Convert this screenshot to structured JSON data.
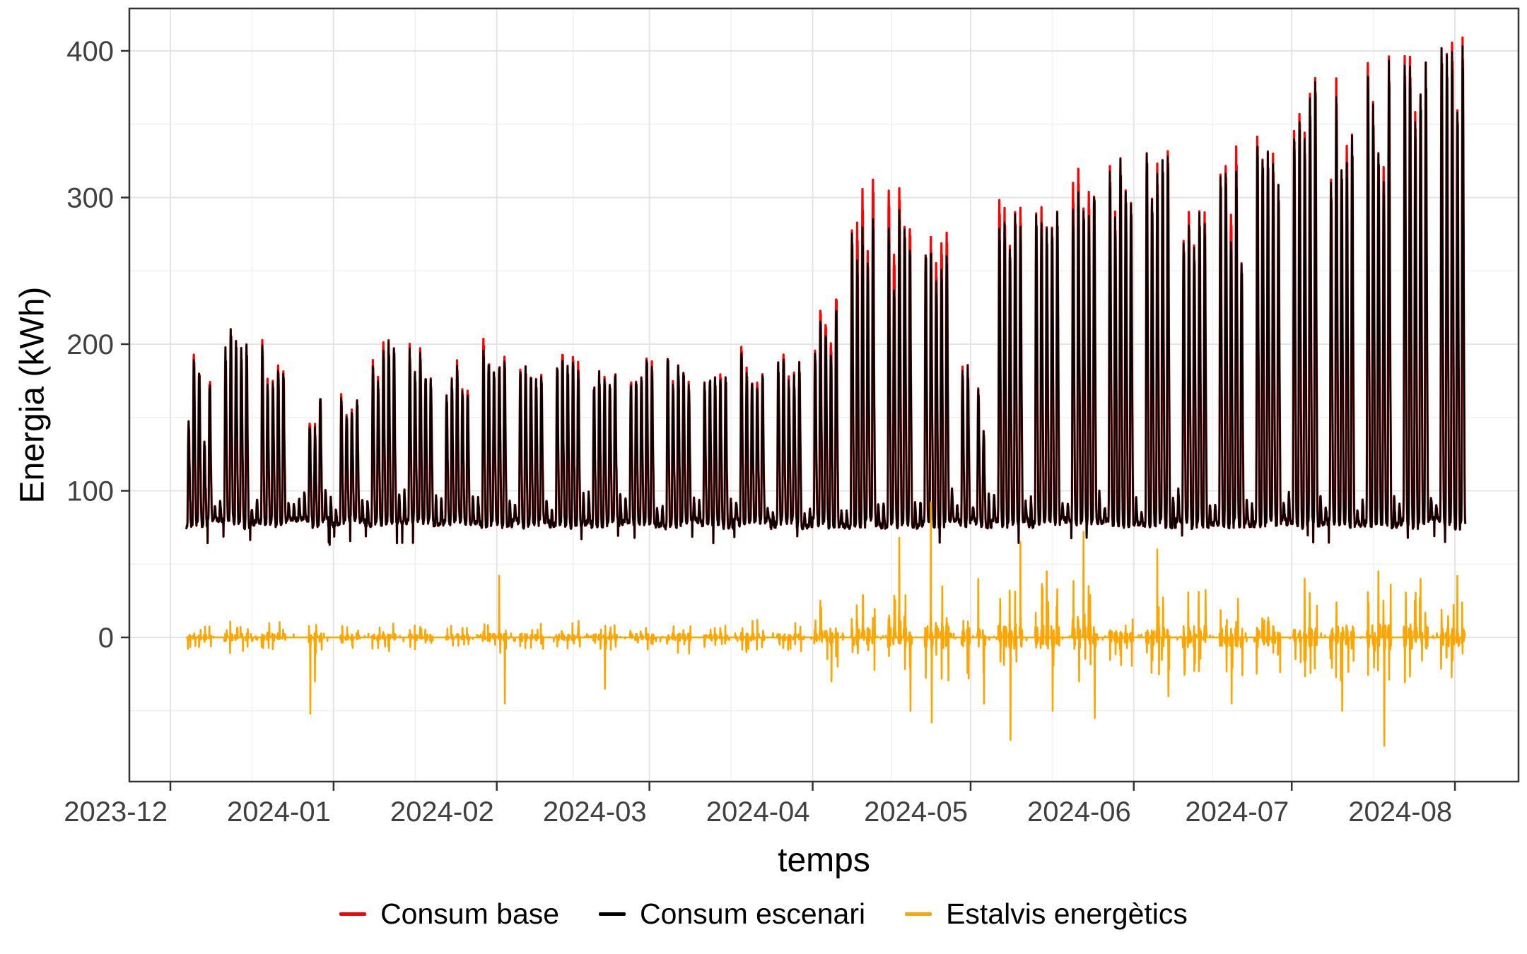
{
  "chart_data": {
    "type": "line",
    "title": "",
    "xlabel": "temps",
    "ylabel": "Energia (kWh)",
    "x_tick_labels": [
      "2023-12",
      "2024-01",
      "2024-02",
      "2024-03",
      "2024-04",
      "2024-05",
      "2024-06",
      "2024-07",
      "2024-08"
    ],
    "month_starts": [
      "2023-12-01",
      "2024-01-01",
      "2024-02-01",
      "2024-03-01",
      "2024-04-01",
      "2024-05-01",
      "2024-06-01",
      "2024-07-01",
      "2024-08-01"
    ],
    "y_tick_labels": [
      "0",
      "100",
      "200",
      "300",
      "400"
    ],
    "y_tick_values": [
      0,
      100,
      200,
      300,
      400
    ],
    "y_minor_values": [
      -50,
      50,
      150,
      250,
      350
    ],
    "ylim": [
      -98,
      429
    ],
    "grid": "major and minor gridlines, light gray on white, dark panel border",
    "legend_position": "bottom-center",
    "resolution": "hourly",
    "date_start": "2023-12-04",
    "date_end": "2024-08-02",
    "holidays": [
      "2023-12-25",
      "2023-12-26",
      "2024-01-01",
      "2024-05-01"
    ],
    "baseline": {
      "night_min": 75,
      "night_max": 81,
      "weekend_bump_max": 22,
      "special_low": {
        "date": "2023-12-31",
        "value": 63
      }
    },
    "series": [
      {
        "name": "Consum base",
        "color": "#FF0000"
      },
      {
        "name": "Consum escenari",
        "color": "#000000"
      },
      {
        "name": "Estalvis energètics",
        "color": "#FFA500"
      }
    ],
    "weekly_envelope": [
      {
        "week_start": "2023-12-04",
        "black_peak_min": 130,
        "black_peak_max": 196,
        "red_excess_max": 4,
        "savings_amp": 8
      },
      {
        "week_start": "2023-12-11",
        "black_peak_min": 185,
        "black_peak_max": 215,
        "red_excess_max": 4,
        "savings_amp": 12
      },
      {
        "week_start": "2023-12-18",
        "black_peak_min": 168,
        "black_peak_max": 206,
        "red_excess_max": 5,
        "savings_amp": 12
      },
      {
        "week_start": "2023-12-25",
        "black_peak_min": 140,
        "black_peak_max": 172,
        "red_excess_max": 3,
        "savings_amp": 15,
        "savings_events": [
          {
            "date": "2023-12-27",
            "value": -52,
            "hour": 14
          },
          {
            "date": "2023-12-28",
            "value": -30,
            "hour": 11
          }
        ]
      },
      {
        "week_start": "2024-01-01",
        "black_peak_min": 145,
        "black_peak_max": 168,
        "red_excess_max": 3,
        "savings_amp": 8
      },
      {
        "week_start": "2024-01-08",
        "black_peak_min": 170,
        "black_peak_max": 205,
        "red_excess_max": 6,
        "savings_amp": 10
      },
      {
        "week_start": "2024-01-15",
        "black_peak_min": 172,
        "black_peak_max": 197,
        "red_excess_max": 5,
        "savings_amp": 10
      },
      {
        "week_start": "2024-01-22",
        "black_peak_min": 162,
        "black_peak_max": 188,
        "red_excess_max": 4,
        "savings_amp": 8
      },
      {
        "week_start": "2024-01-29",
        "black_peak_min": 178,
        "black_peak_max": 212,
        "red_excess_max": 8,
        "savings_amp": 12,
        "savings_events": [
          {
            "date": "2024-02-01",
            "value": 42,
            "hour": 11
          },
          {
            "date": "2024-02-02",
            "value": -45,
            "hour": 13
          }
        ]
      },
      {
        "week_start": "2024-02-05",
        "black_peak_min": 170,
        "black_peak_max": 198,
        "red_excess_max": 5,
        "savings_amp": 12
      },
      {
        "week_start": "2024-02-12",
        "black_peak_min": 178,
        "black_peak_max": 205,
        "red_excess_max": 6,
        "savings_amp": 10
      },
      {
        "week_start": "2024-02-19",
        "black_peak_min": 168,
        "black_peak_max": 196,
        "red_excess_max": 5,
        "savings_amp": 10,
        "savings_events": [
          {
            "date": "2024-02-21",
            "value": -35,
            "hour": 13
          }
        ]
      },
      {
        "week_start": "2024-02-26",
        "black_peak_min": 172,
        "black_peak_max": 190,
        "red_excess_max": 4,
        "savings_amp": 10
      },
      {
        "week_start": "2024-03-04",
        "black_peak_min": 170,
        "black_peak_max": 200,
        "red_excess_max": 5,
        "savings_amp": 12
      },
      {
        "week_start": "2024-03-11",
        "black_peak_min": 172,
        "black_peak_max": 190,
        "red_excess_max": 4,
        "savings_amp": 10
      },
      {
        "week_start": "2024-03-18",
        "black_peak_min": 172,
        "black_peak_max": 204,
        "red_excess_max": 5,
        "savings_amp": 12
      },
      {
        "week_start": "2024-03-25",
        "black_peak_min": 170,
        "black_peak_max": 192,
        "red_excess_max": 4,
        "savings_amp": 10
      },
      {
        "week_start": "2024-04-01",
        "black_peak_min": 185,
        "black_peak_max": 231,
        "red_excess_max": 10,
        "savings_amp": 20,
        "savings_events": [
          {
            "date": "2024-04-02",
            "value": 25,
            "hour": 11
          },
          {
            "date": "2024-04-04",
            "value": -30,
            "hour": 14
          }
        ]
      },
      {
        "week_start": "2024-04-08",
        "black_peak_min": 230,
        "black_peak_max": 290,
        "red_excess_max": 30,
        "savings_amp": 25
      },
      {
        "week_start": "2024-04-15",
        "black_peak_min": 235,
        "black_peak_max": 293,
        "red_excess_max": 28,
        "savings_amp": 30,
        "savings_events": [
          {
            "date": "2024-04-17",
            "value": 68,
            "hour": 11
          },
          {
            "date": "2024-04-19",
            "value": -50,
            "hour": 14
          }
        ]
      },
      {
        "week_start": "2024-04-22",
        "black_peak_min": 230,
        "black_peak_max": 265,
        "red_excess_max": 25,
        "savings_amp": 35,
        "savings_events": [
          {
            "date": "2024-04-23",
            "value": 92,
            "hour": 11
          },
          {
            "date": "2024-04-23",
            "value": -58,
            "hour": 15
          }
        ]
      },
      {
        "week_start": "2024-04-29",
        "black_peak_min": 120,
        "black_peak_max": 205,
        "red_excess_max": 8,
        "savings_amp": 30,
        "savings_events": [
          {
            "date": "2024-05-02",
            "value": 40,
            "hour": 11
          },
          {
            "date": "2024-05-03",
            "value": -45,
            "hour": 13
          }
        ]
      },
      {
        "week_start": "2024-05-06",
        "black_peak_min": 255,
        "black_peak_max": 290,
        "red_excess_max": 25,
        "savings_amp": 40,
        "savings_events": [
          {
            "date": "2024-05-08",
            "value": -70,
            "hour": 14
          },
          {
            "date": "2024-05-10",
            "value": 65,
            "hour": 11
          }
        ]
      },
      {
        "week_start": "2024-05-13",
        "black_peak_min": 265,
        "black_peak_max": 300,
        "red_excess_max": 12,
        "savings_amp": 35,
        "savings_events": [
          {
            "date": "2024-05-15",
            "value": 45,
            "hour": 11
          },
          {
            "date": "2024-05-16",
            "value": -50,
            "hour": 14
          }
        ]
      },
      {
        "week_start": "2024-05-20",
        "black_peak_min": 275,
        "black_peak_max": 305,
        "red_excess_max": 18,
        "savings_amp": 35,
        "savings_events": [
          {
            "date": "2024-05-22",
            "value": 72,
            "hour": 11
          },
          {
            "date": "2024-05-24",
            "value": -55,
            "hour": 14
          }
        ]
      },
      {
        "week_start": "2024-05-27",
        "black_peak_min": 285,
        "black_peak_max": 334,
        "red_excess_max": 6,
        "savings_amp": 20
      },
      {
        "week_start": "2024-06-03",
        "black_peak_min": 300,
        "black_peak_max": 341,
        "red_excess_max": 8,
        "savings_amp": 30,
        "savings_events": [
          {
            "date": "2024-06-05",
            "value": 60,
            "hour": 11
          },
          {
            "date": "2024-06-07",
            "value": -40,
            "hour": 14
          }
        ]
      },
      {
        "week_start": "2024-06-10",
        "black_peak_min": 255,
        "black_peak_max": 298,
        "red_excess_max": 15,
        "savings_amp": 35
      },
      {
        "week_start": "2024-06-17",
        "black_peak_min": 255,
        "black_peak_max": 322,
        "red_excess_max": 20,
        "savings_amp": 30,
        "savings_events": [
          {
            "date": "2024-06-19",
            "value": -45,
            "hour": 14
          }
        ]
      },
      {
        "week_start": "2024-06-24",
        "black_peak_min": 300,
        "black_peak_max": 346,
        "red_excess_max": 8,
        "savings_amp": 25
      },
      {
        "week_start": "2024-07-01",
        "black_peak_min": 315,
        "black_peak_max": 382,
        "red_excess_max": 6,
        "savings_amp": 30,
        "savings_events": [
          {
            "date": "2024-07-03",
            "value": 40,
            "hour": 11
          }
        ]
      },
      {
        "week_start": "2024-07-08",
        "black_peak_min": 300,
        "black_peak_max": 380,
        "red_excess_max": 15,
        "savings_amp": 35,
        "savings_events": [
          {
            "date": "2024-07-10",
            "value": -50,
            "hour": 14
          }
        ]
      },
      {
        "week_start": "2024-07-15",
        "black_peak_min": 300,
        "black_peak_max": 400,
        "red_excess_max": 12,
        "savings_amp": 40,
        "savings_events": [
          {
            "date": "2024-07-17",
            "value": 45,
            "hour": 11
          },
          {
            "date": "2024-07-18",
            "value": -74,
            "hour": 14
          }
        ]
      },
      {
        "week_start": "2024-07-22",
        "black_peak_min": 340,
        "black_peak_max": 410,
        "red_excess_max": 8,
        "savings_amp": 35,
        "savings_events": [
          {
            "date": "2024-07-25",
            "value": 40,
            "hour": 11
          }
        ]
      },
      {
        "week_start": "2024-07-29",
        "black_peak_min": 355,
        "black_peak_max": 405,
        "red_excess_max": 15,
        "savings_amp": 30,
        "savings_events": [
          {
            "date": "2024-08-01",
            "value": 42,
            "hour": 11
          }
        ]
      }
    ],
    "style": {
      "panel_border_color": "#333333",
      "tick_label_color": "#404040",
      "major_grid_color": "#e4e4e4",
      "minor_grid_color": "#f0f0f0",
      "background": "#ffffff"
    }
  }
}
